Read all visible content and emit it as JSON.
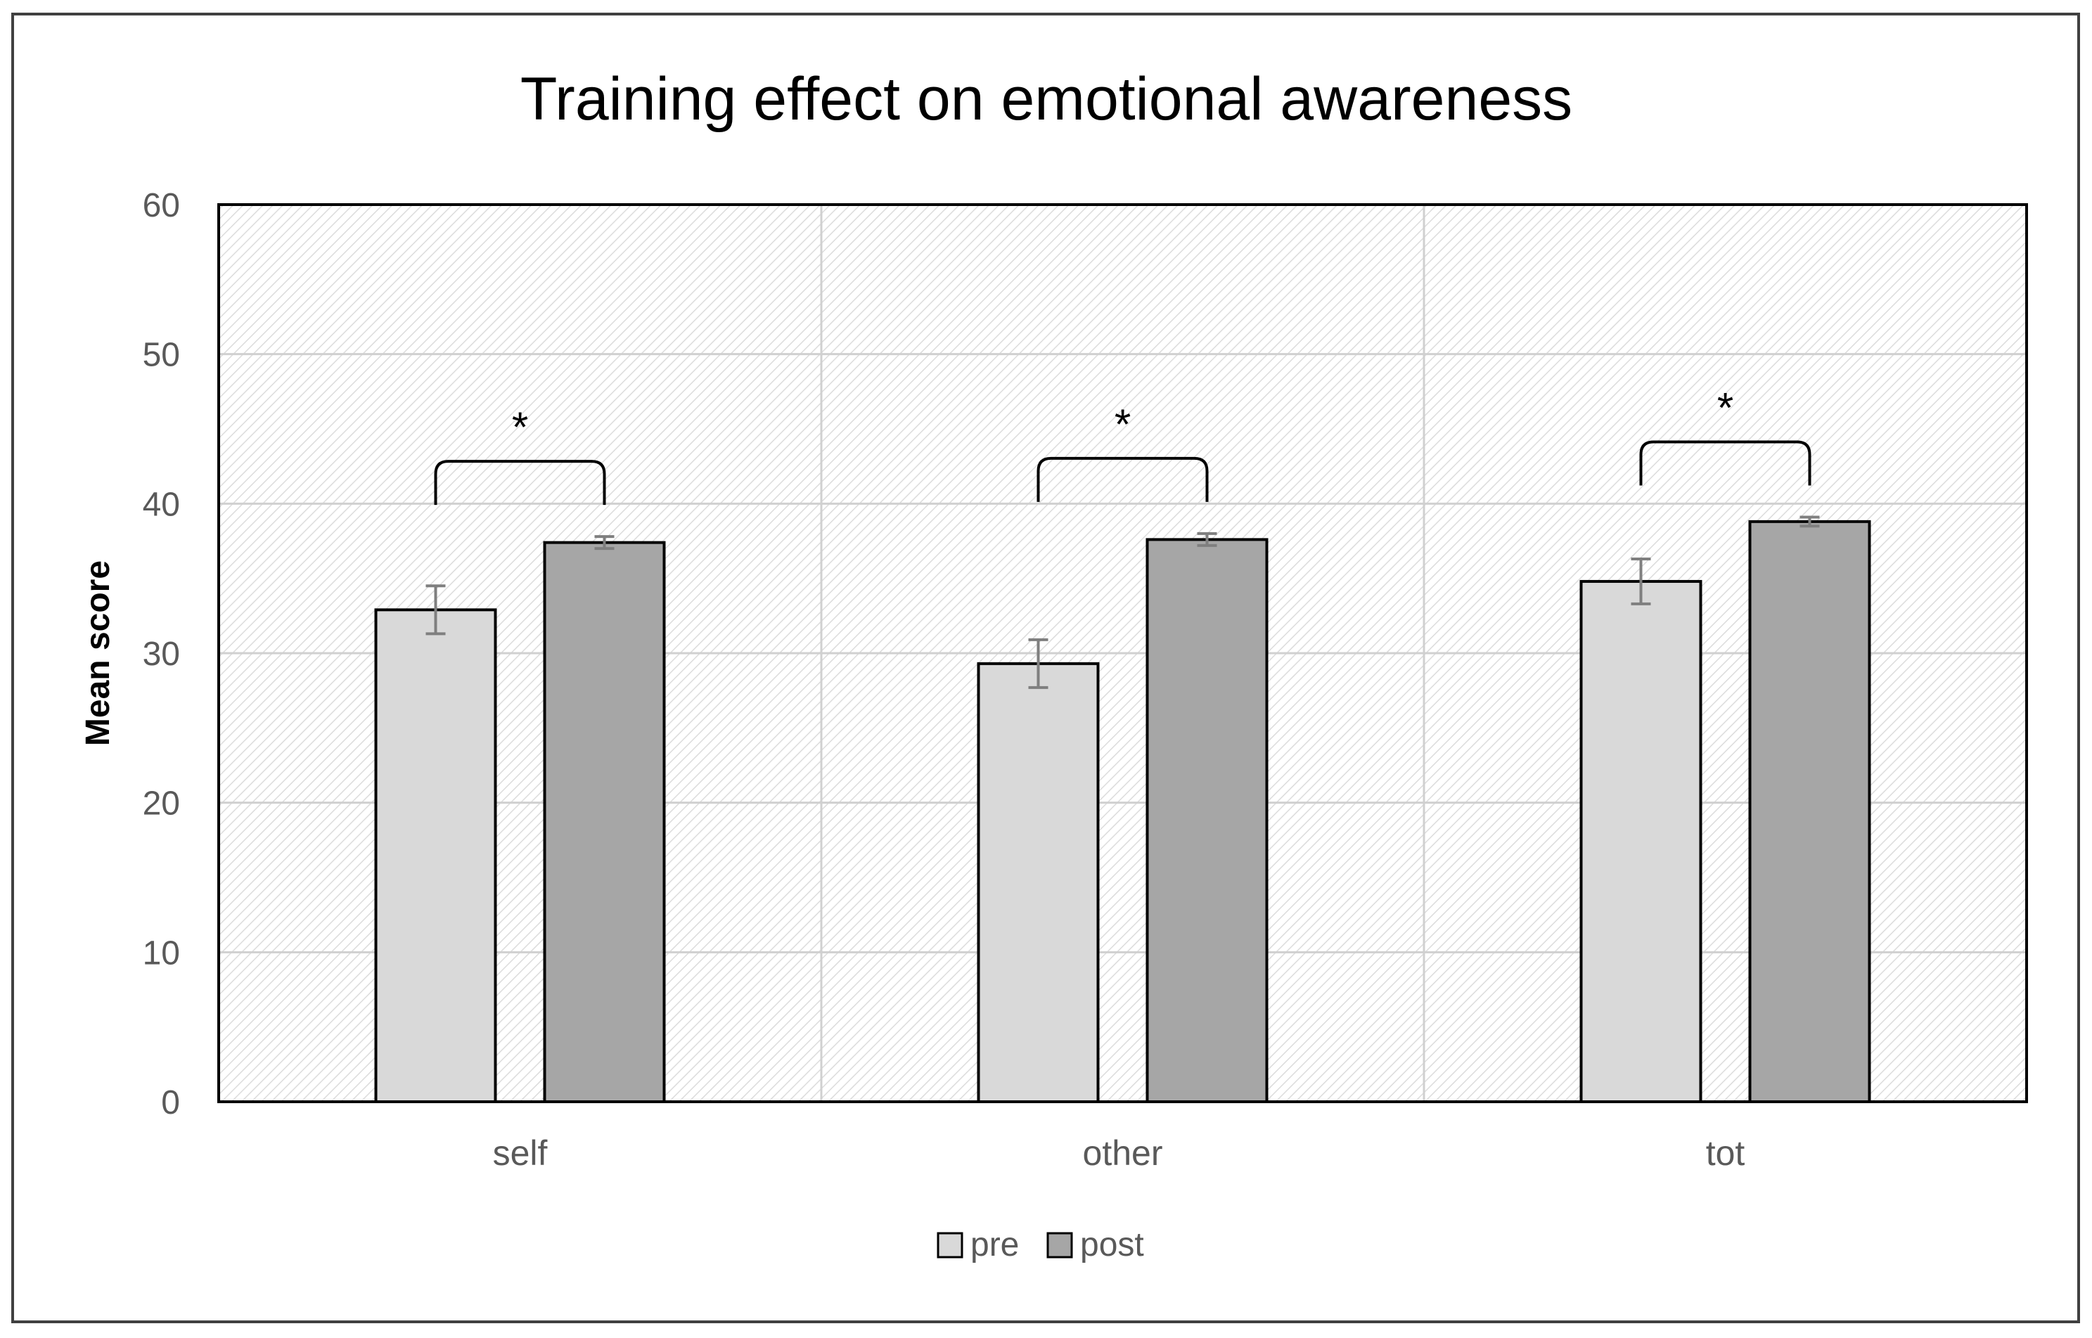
{
  "chart_data": {
    "type": "bar",
    "title": "Training effect on emotional awareness",
    "xlabel": "",
    "ylabel": "Mean score",
    "ylim": [
      0,
      60
    ],
    "yticks": [
      0,
      10,
      20,
      30,
      40,
      50,
      60
    ],
    "categories": [
      "self",
      "other",
      "tot"
    ],
    "series": [
      {
        "name": "pre",
        "color": "#d9d9d9",
        "values": [
          32.9,
          29.3,
          34.8
        ],
        "errors": [
          1.6,
          1.6,
          1.5
        ]
      },
      {
        "name": "post",
        "color": "#a6a6a6",
        "values": [
          37.4,
          37.6,
          38.8
        ],
        "errors": [
          0.4,
          0.4,
          0.3
        ]
      }
    ],
    "significance": [
      {
        "category": "self",
        "label": "*"
      },
      {
        "category": "other",
        "label": "*"
      },
      {
        "category": "tot",
        "label": "*"
      }
    ],
    "legend_position": "bottom",
    "grid": true
  }
}
